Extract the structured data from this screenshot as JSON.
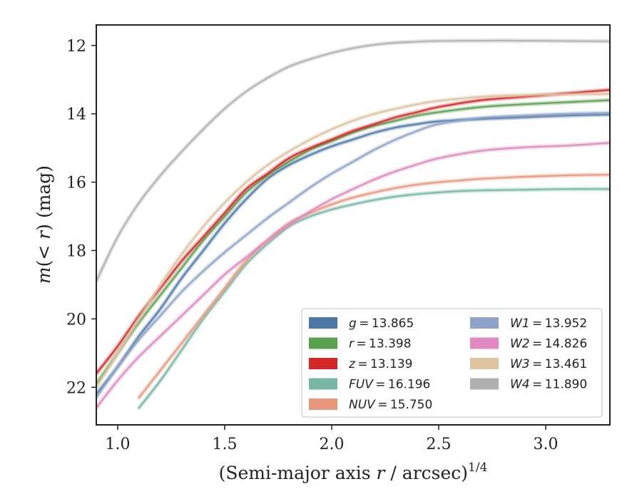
{
  "chart_data": {
    "type": "line",
    "title": "",
    "xlabel": "(Semi-major axis r / arcsec)",
    "xlabel_parts": {
      "pre": "(Semi-major axis ",
      "var": "r",
      "post": " / arcsec)",
      "sup": "1/4"
    },
    "ylabel": "m(< r) (mag)",
    "ylabel_parts": {
      "m": "m",
      "inner": "(< ",
      "r": "r",
      "close": ")",
      "unit": " (mag)"
    },
    "xlim": [
      0.9,
      3.3
    ],
    "ylim": [
      23.1,
      11.4
    ],
    "y_inverted": true,
    "xticks": [
      1.0,
      1.5,
      2.0,
      2.5,
      3.0
    ],
    "xtick_labels": [
      "1.0",
      "1.5",
      "2.0",
      "2.5",
      "3.0"
    ],
    "yticks": [
      12,
      14,
      16,
      18,
      20,
      22
    ],
    "ytick_labels": [
      "12",
      "14",
      "16",
      "18",
      "20",
      "22"
    ],
    "grid": false,
    "legend_position": "lower-right",
    "series": [
      {
        "name": "g",
        "value": "13.865",
        "color": "#4c78a8",
        "x": [
          0.9,
          1.0,
          1.1,
          1.2,
          1.3,
          1.4,
          1.5,
          1.6,
          1.7,
          1.8,
          1.9,
          2.0,
          2.1,
          2.2,
          2.3,
          2.4,
          2.5,
          2.7,
          2.9,
          3.1,
          3.3
        ],
        "y": [
          22.2,
          21.4,
          20.5,
          19.7,
          18.8,
          18.0,
          17.2,
          16.5,
          15.9,
          15.5,
          15.2,
          14.95,
          14.75,
          14.55,
          14.4,
          14.3,
          14.22,
          14.15,
          14.1,
          14.05,
          14.02
        ]
      },
      {
        "name": "r",
        "value": "13.398",
        "color": "#59a14f",
        "x": [
          0.9,
          1.0,
          1.1,
          1.2,
          1.3,
          1.4,
          1.5,
          1.6,
          1.7,
          1.8,
          1.9,
          2.0,
          2.1,
          2.2,
          2.3,
          2.4,
          2.5,
          2.7,
          2.9,
          3.1,
          3.3
        ],
        "y": [
          21.9,
          21.0,
          20.1,
          19.3,
          18.5,
          17.7,
          17.0,
          16.3,
          15.8,
          15.4,
          15.05,
          14.8,
          14.55,
          14.35,
          14.2,
          14.05,
          13.95,
          13.8,
          13.72,
          13.66,
          13.6
        ]
      },
      {
        "name": "z",
        "value": "13.139",
        "color": "#d62728",
        "x": [
          0.9,
          1.0,
          1.1,
          1.2,
          1.3,
          1.4,
          1.5,
          1.6,
          1.7,
          1.8,
          1.9,
          2.0,
          2.1,
          2.2,
          2.3,
          2.4,
          2.5,
          2.7,
          2.9,
          3.1,
          3.3
        ],
        "y": [
          21.6,
          20.8,
          19.9,
          19.1,
          18.3,
          17.6,
          16.9,
          16.2,
          15.75,
          15.3,
          15.0,
          14.75,
          14.5,
          14.3,
          14.1,
          13.95,
          13.8,
          13.6,
          13.5,
          13.4,
          13.3
        ]
      },
      {
        "name": "FUV",
        "value": "16.196",
        "color": "#76b7a8",
        "x": [
          1.1,
          1.2,
          1.3,
          1.4,
          1.5,
          1.6,
          1.7,
          1.8,
          1.9,
          2.0,
          2.1,
          2.2,
          2.3,
          2.4,
          2.5,
          2.6,
          2.7,
          2.9,
          3.1,
          3.3
        ],
        "y": [
          22.6,
          21.8,
          20.9,
          20.0,
          19.2,
          18.4,
          17.8,
          17.3,
          17.0,
          16.8,
          16.65,
          16.52,
          16.42,
          16.35,
          16.3,
          16.26,
          16.24,
          16.22,
          16.2,
          16.2
        ]
      },
      {
        "name": "NUV",
        "value": "15.750",
        "color": "#e8967a",
        "x": [
          1.1,
          1.2,
          1.3,
          1.4,
          1.5,
          1.6,
          1.7,
          1.8,
          1.9,
          2.0,
          2.1,
          2.2,
          2.3,
          2.4,
          2.5,
          2.6,
          2.7,
          2.9,
          3.1,
          3.3
        ],
        "y": [
          22.3,
          21.5,
          20.7,
          19.9,
          19.1,
          18.3,
          17.7,
          17.2,
          16.9,
          16.65,
          16.45,
          16.3,
          16.17,
          16.07,
          16.0,
          15.95,
          15.9,
          15.84,
          15.8,
          15.78
        ]
      },
      {
        "name": "W1",
        "value": "13.952",
        "color": "#8fa3c8",
        "x": [
          0.9,
          1.0,
          1.1,
          1.2,
          1.3,
          1.4,
          1.5,
          1.6,
          1.7,
          1.8,
          1.9,
          2.0,
          2.1,
          2.2,
          2.3,
          2.4,
          2.5,
          2.7,
          2.9,
          3.1,
          3.3
        ],
        "y": [
          22.3,
          21.4,
          20.6,
          19.9,
          19.2,
          18.6,
          18.05,
          17.55,
          17.05,
          16.6,
          16.15,
          15.75,
          15.4,
          15.05,
          14.75,
          14.5,
          14.3,
          14.12,
          14.05,
          14.0,
          13.97
        ]
      },
      {
        "name": "W2",
        "value": "14.826",
        "color": "#e08ac0",
        "x": [
          0.9,
          1.0,
          1.1,
          1.2,
          1.3,
          1.4,
          1.5,
          1.6,
          1.7,
          1.8,
          1.9,
          2.0,
          2.1,
          2.2,
          2.3,
          2.4,
          2.5,
          2.7,
          2.9,
          3.1,
          3.3
        ],
        "y": [
          22.6,
          21.8,
          21.1,
          20.5,
          19.9,
          19.3,
          18.7,
          18.2,
          17.7,
          17.25,
          16.85,
          16.5,
          16.2,
          15.92,
          15.68,
          15.48,
          15.3,
          15.08,
          14.98,
          14.93,
          14.85
        ]
      },
      {
        "name": "W3",
        "value": "13.461",
        "color": "#ddc3a0",
        "x": [
          0.9,
          1.0,
          1.1,
          1.2,
          1.3,
          1.4,
          1.5,
          1.6,
          1.7,
          1.8,
          1.9,
          2.0,
          2.1,
          2.2,
          2.3,
          2.4,
          2.5,
          2.7,
          2.9,
          3.1,
          3.3
        ],
        "y": [
          22.0,
          21.0,
          20.0,
          19.0,
          18.1,
          17.3,
          16.6,
          16.0,
          15.5,
          15.1,
          14.75,
          14.45,
          14.2,
          14.0,
          13.85,
          13.72,
          13.62,
          13.5,
          13.45,
          13.43,
          13.42
        ]
      },
      {
        "name": "W4",
        "value": "11.890",
        "color": "#b0b0b0",
        "x": [
          0.9,
          1.0,
          1.1,
          1.2,
          1.3,
          1.4,
          1.5,
          1.6,
          1.7,
          1.8,
          1.9,
          2.0,
          2.1,
          2.2,
          2.3,
          2.4,
          2.5,
          2.7,
          2.9,
          3.1,
          3.3
        ],
        "y": [
          18.9,
          17.6,
          16.6,
          15.8,
          15.1,
          14.45,
          13.85,
          13.35,
          12.95,
          12.62,
          12.4,
          12.22,
          12.08,
          11.98,
          11.92,
          11.89,
          11.87,
          11.86,
          11.86,
          11.87,
          11.88
        ]
      }
    ]
  }
}
